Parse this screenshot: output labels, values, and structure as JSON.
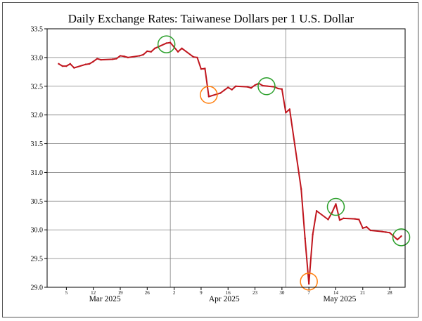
{
  "chart_data": {
    "type": "line",
    "title": "Daily Exchange Rates: Taiwanese Dollars per 1 U.S. Dollar",
    "xlabel": "",
    "ylabel": "",
    "ylim": [
      29.0,
      33.5
    ],
    "xlim": [
      "2025-02-28",
      "2025-06-01"
    ],
    "grid": true,
    "y_ticks": [
      "29.0",
      "29.5",
      "30.0",
      "30.5",
      "31.0",
      "31.5",
      "32.0",
      "32.5",
      "33.0",
      "33.5"
    ],
    "x_minor_ticks": [
      {
        "date": "2025-03-05",
        "label": "5"
      },
      {
        "date": "2025-03-12",
        "label": "12"
      },
      {
        "date": "2025-03-19",
        "label": "19"
      },
      {
        "date": "2025-03-26",
        "label": "26"
      },
      {
        "date": "2025-04-02",
        "label": "2"
      },
      {
        "date": "2025-04-09",
        "label": "9"
      },
      {
        "date": "2025-04-16",
        "label": "16"
      },
      {
        "date": "2025-04-23",
        "label": "23"
      },
      {
        "date": "2025-04-30",
        "label": "30"
      },
      {
        "date": "2025-05-07",
        "label": "7"
      },
      {
        "date": "2025-05-14",
        "label": "14"
      },
      {
        "date": "2025-05-21",
        "label": "21"
      },
      {
        "date": "2025-05-28",
        "label": "28"
      }
    ],
    "x_month_labels": [
      {
        "date": "2025-03-15",
        "label": "Mar 2025"
      },
      {
        "date": "2025-04-15",
        "label": "Apr 2025"
      },
      {
        "date": "2025-05-15",
        "label": "May 2025"
      }
    ],
    "month_gridlines": [
      "2025-04-01",
      "2025-05-01"
    ],
    "series": [
      {
        "color": "#c0161e",
        "points": [
          [
            "2025-03-03",
            32.89
          ],
          [
            "2025-03-04",
            32.85
          ],
          [
            "2025-03-05",
            32.85
          ],
          [
            "2025-03-06",
            32.89
          ],
          [
            "2025-03-07",
            32.82
          ],
          [
            "2025-03-10",
            32.88
          ],
          [
            "2025-03-11",
            32.89
          ],
          [
            "2025-03-12",
            32.93
          ],
          [
            "2025-03-13",
            32.98
          ],
          [
            "2025-03-14",
            32.96
          ],
          [
            "2025-03-17",
            32.97
          ],
          [
            "2025-03-18",
            32.98
          ],
          [
            "2025-03-19",
            33.03
          ],
          [
            "2025-03-20",
            33.02
          ],
          [
            "2025-03-21",
            33.0
          ],
          [
            "2025-03-24",
            33.03
          ],
          [
            "2025-03-25",
            33.05
          ],
          [
            "2025-03-26",
            33.11
          ],
          [
            "2025-03-27",
            33.1
          ],
          [
            "2025-03-28",
            33.16
          ],
          [
            "2025-03-31",
            33.25
          ],
          [
            "2025-04-01",
            33.26
          ],
          [
            "2025-04-02",
            33.18
          ],
          [
            "2025-04-03",
            33.1
          ],
          [
            "2025-04-04",
            33.16
          ],
          [
            "2025-04-07",
            33.01
          ],
          [
            "2025-04-08",
            33.0
          ],
          [
            "2025-04-09",
            32.8
          ],
          [
            "2025-04-10",
            32.81
          ],
          [
            "2025-04-11",
            32.32
          ],
          [
            "2025-04-14",
            32.38
          ],
          [
            "2025-04-15",
            32.43
          ],
          [
            "2025-04-16",
            32.48
          ],
          [
            "2025-04-17",
            32.44
          ],
          [
            "2025-04-18",
            32.5
          ],
          [
            "2025-04-21",
            32.49
          ],
          [
            "2025-04-22",
            32.47
          ],
          [
            "2025-04-23",
            32.52
          ],
          [
            "2025-04-24",
            32.55
          ],
          [
            "2025-04-25",
            32.51
          ],
          [
            "2025-04-28",
            32.49
          ],
          [
            "2025-04-29",
            32.46
          ],
          [
            "2025-04-30",
            32.45
          ],
          [
            "2025-05-01",
            32.04
          ],
          [
            "2025-05-02",
            32.1
          ],
          [
            "2025-05-05",
            30.71
          ],
          [
            "2025-05-06",
            29.85
          ],
          [
            "2025-05-07",
            29.06
          ],
          [
            "2025-05-08",
            29.92
          ],
          [
            "2025-05-09",
            30.33
          ],
          [
            "2025-05-12",
            30.18
          ],
          [
            "2025-05-13",
            30.3
          ],
          [
            "2025-05-14",
            30.45
          ],
          [
            "2025-05-15",
            30.17
          ],
          [
            "2025-05-16",
            30.2
          ],
          [
            "2025-05-19",
            30.19
          ],
          [
            "2025-05-20",
            30.18
          ],
          [
            "2025-05-21",
            30.03
          ],
          [
            "2025-05-22",
            30.05
          ],
          [
            "2025-05-23",
            29.99
          ],
          [
            "2025-05-26",
            29.97
          ],
          [
            "2025-05-27",
            29.96
          ],
          [
            "2025-05-28",
            29.95
          ],
          [
            "2025-05-29",
            29.89
          ],
          [
            "2025-05-30",
            29.83
          ],
          [
            "2025-05-31",
            29.89
          ]
        ]
      }
    ],
    "annotations": [
      {
        "shape": "circle",
        "color": "#2ca02c",
        "at": [
          "2025-03-31",
          33.23
        ]
      },
      {
        "shape": "circle",
        "color": "#ff7f0e",
        "at": [
          "2025-04-11",
          32.35
        ]
      },
      {
        "shape": "circle",
        "color": "#2ca02c",
        "at": [
          "2025-04-26",
          32.5
        ]
      },
      {
        "shape": "circle",
        "color": "#ff7f0e",
        "at": [
          "2025-05-07",
          29.1
        ]
      },
      {
        "shape": "circle",
        "color": "#2ca02c",
        "at": [
          "2025-05-14",
          30.4
        ]
      },
      {
        "shape": "circle",
        "color": "#2ca02c",
        "at": [
          "2025-05-31",
          29.87
        ]
      }
    ]
  }
}
